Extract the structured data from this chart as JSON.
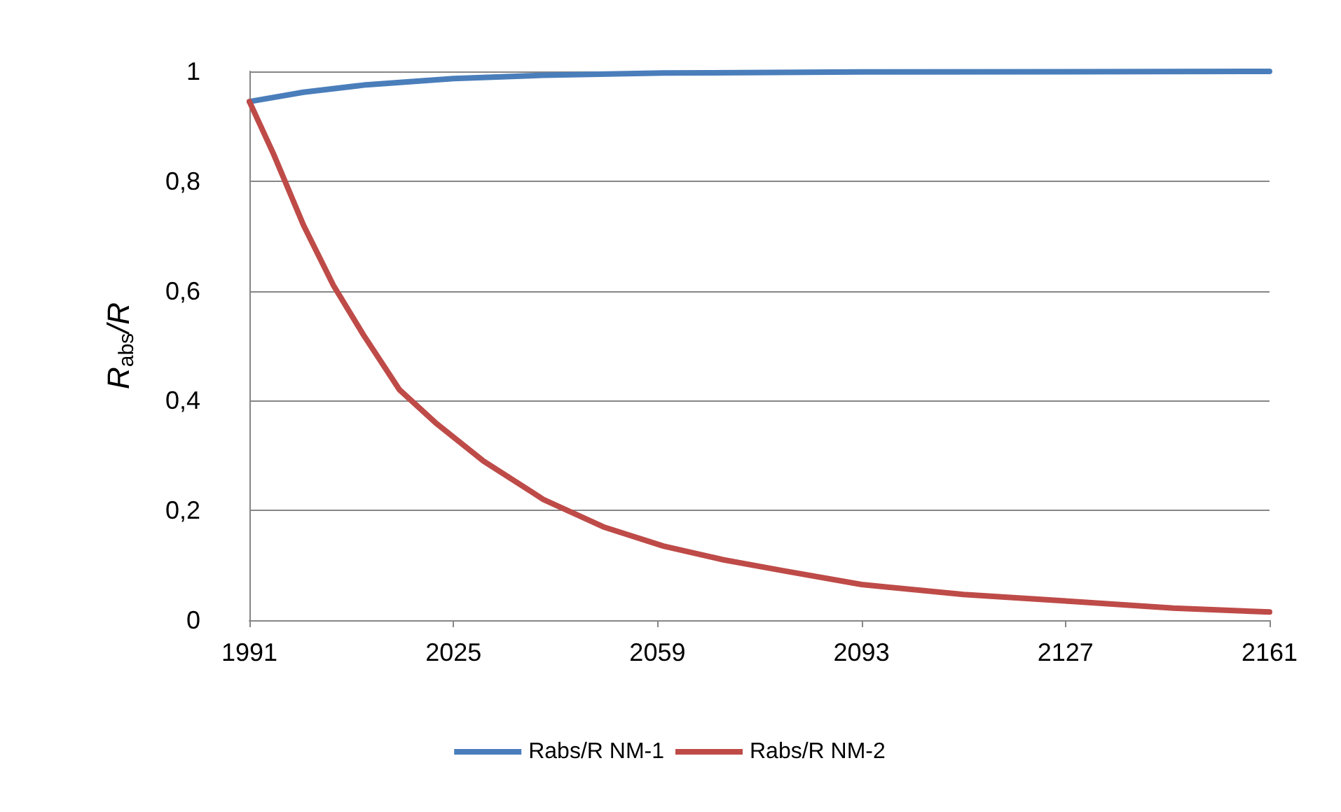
{
  "chart_data": {
    "type": "line",
    "ylabel": "R$_{abs}$/R",
    "xlim": [
      1991,
      2161
    ],
    "xticks": [
      1991,
      2025,
      2059,
      2093,
      2127,
      2161
    ],
    "ylim": [
      0,
      1
    ],
    "yticks": [
      0,
      {
        "value": 0.2,
        "label": "0,2"
      },
      {
        "value": 0.4,
        "label": "0,4"
      },
      {
        "value": 0.6,
        "label": "0,6"
      },
      {
        "value": 0.8,
        "label": "0,8"
      },
      1
    ],
    "grid": "y",
    "legend": "bottom",
    "marker": "none",
    "line_style": "solid",
    "series": [
      {
        "name": "Rabs/R NM-1",
        "color": "#4a7ebb",
        "x": [
          1991,
          2000,
          2010,
          2025,
          2040,
          2060,
          2093,
          2161
        ],
        "values": [
          0.945,
          0.962,
          0.975,
          0.987,
          0.993,
          0.997,
          0.999,
          1.0
        ]
      },
      {
        "name": "Rabs/R NM-2",
        "color": "#be4b48",
        "x": [
          1991,
          1995,
          2000,
          2005,
          2010,
          2016,
          2022,
          2030,
          2040,
          2050,
          2060,
          2070,
          2080,
          2093,
          2110,
          2127,
          2145,
          2161
        ],
        "values": [
          0.945,
          0.85,
          0.72,
          0.61,
          0.52,
          0.42,
          0.36,
          0.29,
          0.22,
          0.17,
          0.135,
          0.11,
          0.09,
          0.065,
          0.047,
          0.035,
          0.022,
          0.015
        ]
      }
    ]
  }
}
